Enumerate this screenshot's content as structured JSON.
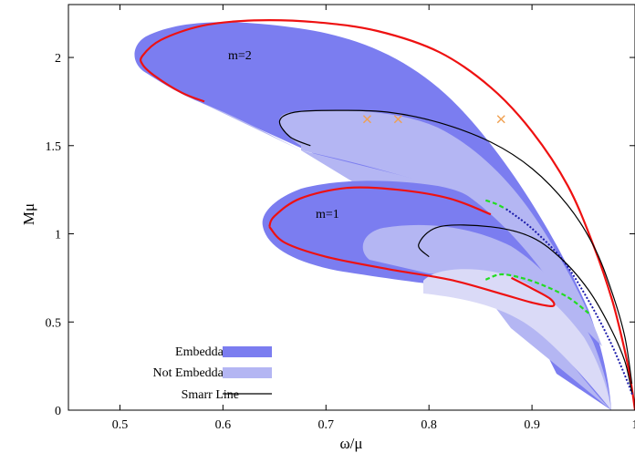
{
  "chart_data": {
    "type": "area",
    "title": "",
    "xlabel": "ω/μ",
    "ylabel": "Mμ",
    "xlim": [
      0.45,
      1.0
    ],
    "ylim": [
      0,
      2.3
    ],
    "xticks": [
      0.5,
      0.6,
      0.7,
      0.8,
      0.9,
      1.0
    ],
    "xtick_labels": [
      "0.5",
      "0.6",
      "0.7",
      "0.8",
      "0.9",
      "1"
    ],
    "yticks": [
      0,
      0.5,
      1.0,
      1.5,
      2.0
    ],
    "ytick_labels": [
      "0",
      "0.5",
      "1",
      "1.5",
      "2"
    ],
    "grid": false,
    "legend_position": "bottom-left",
    "colors": {
      "embeddable": "#7b7df0",
      "not_embeddable": "#b4b6f3",
      "inner_region": "#dadaf7",
      "boundary": "#ee1111",
      "smarr": "#000000",
      "dashed_branch": "#22dd22",
      "dotted_branch": "#1a1aaa",
      "marker": "#f0a050"
    },
    "legend": [
      {
        "label": "Embeddable",
        "style": "fill",
        "color": "#7b7df0"
      },
      {
        "label": "Not Embeddable",
        "style": "fill",
        "color": "#b4b6f3"
      },
      {
        "label": "Smarr Line",
        "style": "line",
        "color": "#000000"
      }
    ],
    "annotations": [
      {
        "text": "m=2",
        "x": 0.605,
        "y": 1.99
      },
      {
        "text": "m=1",
        "x": 0.69,
        "y": 1.09
      }
    ],
    "series": [
      {
        "role": "m2-boundary",
        "x": [
          0.582,
          0.56,
          0.535,
          0.522,
          0.522,
          0.54,
          0.58,
          0.63,
          0.69,
          0.75,
          0.81,
          0.86,
          0.9,
          0.935,
          0.96,
          0.978,
          0.99,
          0.996,
          1.0
        ],
        "y": [
          1.75,
          1.8,
          1.89,
          1.96,
          2.01,
          2.1,
          2.18,
          2.21,
          2.2,
          2.15,
          2.03,
          1.83,
          1.58,
          1.27,
          0.93,
          0.62,
          0.34,
          0.16,
          0.0
        ]
      },
      {
        "role": "m2-lower-edge",
        "x": [
          0.582,
          0.64,
          0.69,
          0.74,
          0.79,
          0.83,
          0.865
        ],
        "y": [
          1.75,
          1.6,
          1.48,
          1.4,
          1.33,
          1.26,
          1.19
        ]
      },
      {
        "role": "m2-smarr",
        "x": [
          0.685,
          0.665,
          0.655,
          0.67,
          0.71,
          0.76,
          0.81,
          0.86,
          0.9,
          0.935,
          0.96,
          0.977,
          0.99,
          0.997
        ],
        "y": [
          1.5,
          1.55,
          1.64,
          1.69,
          1.7,
          1.69,
          1.63,
          1.52,
          1.37,
          1.16,
          0.93,
          0.68,
          0.42,
          0.15
        ]
      },
      {
        "role": "m2-markers",
        "x": [
          0.74,
          0.77,
          0.87
        ],
        "y": [
          1.65,
          1.65,
          1.65
        ]
      },
      {
        "role": "m2-dashed",
        "x": [
          0.855,
          0.865,
          0.875
        ],
        "y": [
          1.19,
          1.17,
          1.14
        ]
      },
      {
        "role": "m2-dotted",
        "x": [
          0.875,
          0.9,
          0.93,
          0.955,
          0.975,
          0.99,
          0.998
        ],
        "y": [
          1.14,
          1.03,
          0.85,
          0.62,
          0.4,
          0.2,
          0.08
        ]
      },
      {
        "role": "m1-boundary",
        "x": [
          0.645,
          0.65,
          0.675,
          0.72,
          0.77,
          0.82,
          0.86
        ],
        "y": [
          1.04,
          1.1,
          1.2,
          1.26,
          1.25,
          1.2,
          1.11
        ]
      },
      {
        "role": "m1-lower-boundary",
        "x": [
          0.645,
          0.66,
          0.7,
          0.76,
          0.82,
          0.87,
          0.9,
          0.92,
          0.918,
          0.9,
          0.88
        ],
        "y": [
          1.04,
          0.95,
          0.87,
          0.8,
          0.74,
          0.66,
          0.61,
          0.59,
          0.63,
          0.69,
          0.75
        ]
      },
      {
        "role": "m1-smarr",
        "x": [
          0.8,
          0.79,
          0.81,
          0.86,
          0.9,
          0.93,
          0.955,
          0.975,
          0.99,
          0.997
        ],
        "y": [
          0.87,
          0.94,
          1.04,
          1.04,
          0.98,
          0.85,
          0.68,
          0.48,
          0.28,
          0.1
        ]
      },
      {
        "role": "m1-inner-region-edge",
        "x": [
          0.81,
          0.83,
          0.86,
          0.89,
          0.92,
          0.95,
          0.975,
          0.99,
          0.999
        ],
        "y": [
          0.69,
          0.78,
          0.81,
          0.79,
          0.73,
          0.62,
          0.46,
          0.28,
          0.08
        ]
      },
      {
        "role": "m1-dashed",
        "x": [
          0.855,
          0.87,
          0.89,
          0.91,
          0.935,
          0.955
        ],
        "y": [
          0.74,
          0.77,
          0.75,
          0.71,
          0.64,
          0.55
        ]
      }
    ]
  }
}
